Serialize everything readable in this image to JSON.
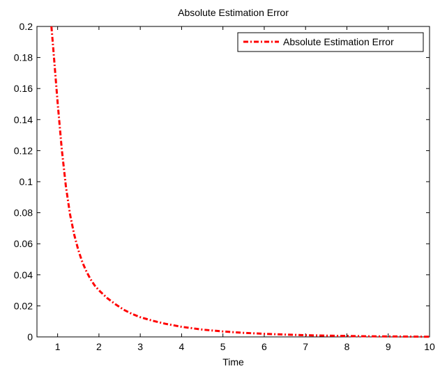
{
  "chart_data": {
    "type": "line",
    "title": "Absolute Estimation Error",
    "xlabel": "Time",
    "ylabel": "",
    "xlim": [
      0.5,
      10
    ],
    "ylim": [
      0,
      0.2
    ],
    "xticks": [
      1,
      2,
      3,
      4,
      5,
      6,
      7,
      8,
      9,
      10
    ],
    "xtick_labels": [
      "1",
      "2",
      "3",
      "4",
      "5",
      "6",
      "7",
      "8",
      "9",
      "10"
    ],
    "yticks": [
      0,
      0.02,
      0.04,
      0.06,
      0.08,
      0.1,
      0.12,
      0.14,
      0.16,
      0.18,
      0.2
    ],
    "ytick_labels": [
      "0",
      "0.02",
      "0.04",
      "0.06",
      "0.08",
      "0.1",
      "0.12",
      "0.14",
      "0.16",
      "0.18",
      "0.2"
    ],
    "grid": false,
    "legend_position": "top-right",
    "series": [
      {
        "name": "Absolute Estimation Error",
        "color": "#ff0000",
        "line_style": "dash-dot",
        "x": [
          0.85,
          0.9,
          1.0,
          1.1,
          1.2,
          1.3,
          1.4,
          1.5,
          1.6,
          1.7,
          1.8,
          1.9,
          2.0,
          2.2,
          2.4,
          2.6,
          2.8,
          3.0,
          3.3,
          3.6,
          4.0,
          4.5,
          5.0,
          5.5,
          6.0,
          6.5,
          7.0,
          7.5,
          8.0,
          8.5,
          9.0,
          9.5,
          10.0
        ],
        "y": [
          0.2,
          0.184,
          0.151,
          0.121,
          0.097,
          0.079,
          0.066,
          0.056,
          0.048,
          0.042,
          0.037,
          0.033,
          0.03,
          0.025,
          0.021,
          0.0175,
          0.0148,
          0.0127,
          0.0104,
          0.0085,
          0.0065,
          0.0047,
          0.0035,
          0.0026,
          0.002,
          0.0015,
          0.0011,
          0.0008,
          0.0006,
          0.0004,
          0.0003,
          0.0002,
          0.0001
        ]
      }
    ]
  }
}
